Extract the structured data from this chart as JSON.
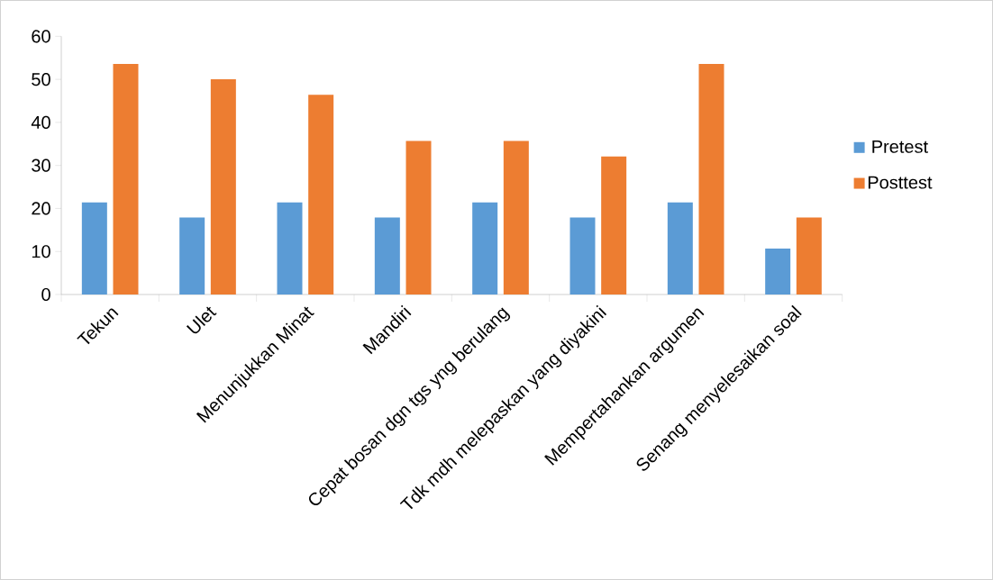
{
  "chart_data": {
    "type": "bar",
    "categories": [
      "Tekun",
      "Ulet",
      "Menunjukkan Minat",
      "Mandiri",
      "Cepat bosan dgn tgs yng berulang",
      "Tdk mdh melepaskan yang diyakini",
      "Mempertahankan argumen",
      "Senang menyelesaikan soal"
    ],
    "series": [
      {
        "name": "Pretest",
        "color": "#5b9bd5",
        "values": [
          21.4,
          17.9,
          21.4,
          17.9,
          21.4,
          17.9,
          21.4,
          10.7
        ]
      },
      {
        "name": "Posttest",
        "color": "#ed7d31",
        "values": [
          53.6,
          50,
          46.4,
          35.7,
          35.7,
          32.1,
          53.6,
          17.9
        ]
      }
    ],
    "ylim": [
      0,
      60
    ],
    "yticks": [
      0,
      10,
      20,
      30,
      40,
      50,
      60
    ],
    "grid": false,
    "legend": "right"
  }
}
